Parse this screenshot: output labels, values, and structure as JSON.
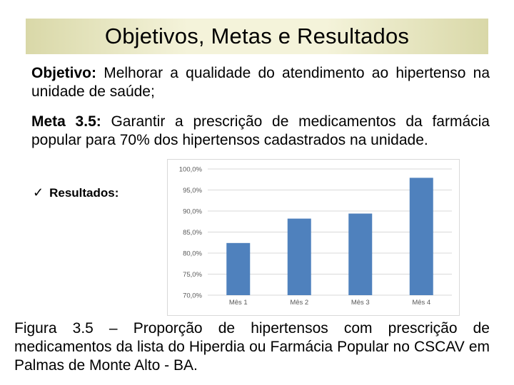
{
  "title": "Objetivos, Metas e Resultados",
  "objetivo": {
    "label": "Objetivo:",
    "text": " Melhorar a qualidade do atendimento ao hipertenso na unidade de saúde;"
  },
  "meta": {
    "label": "Meta 3.5:",
    "text": " Garantir a prescrição de medicamentos da farmácia popular para 70% dos hipertensos cadastrados na unidade."
  },
  "resultados": {
    "icon": "check-icon",
    "label": "Resultados:"
  },
  "chart_data": {
    "type": "bar",
    "categories": [
      "Mês 1",
      "Mês 2",
      "Mês 3",
      "Mês 4"
    ],
    "values": [
      82.4,
      88.2,
      89.4,
      97.9
    ],
    "ylim": [
      70,
      100
    ],
    "yticks": [
      "70,0%",
      "75,0%",
      "80,0%",
      "85,0%",
      "90,0%",
      "95,0%",
      "100,0%"
    ],
    "bar_color": "#4f81bd",
    "grid": true,
    "title": "",
    "xlabel": "",
    "ylabel": ""
  },
  "caption": "Figura 3.5 – Proporção de hipertensos com prescrição de medicamentos da lista do Hiperdia ou Farmácia Popular no CSCAV em Palmas de Monte Alto - BA."
}
